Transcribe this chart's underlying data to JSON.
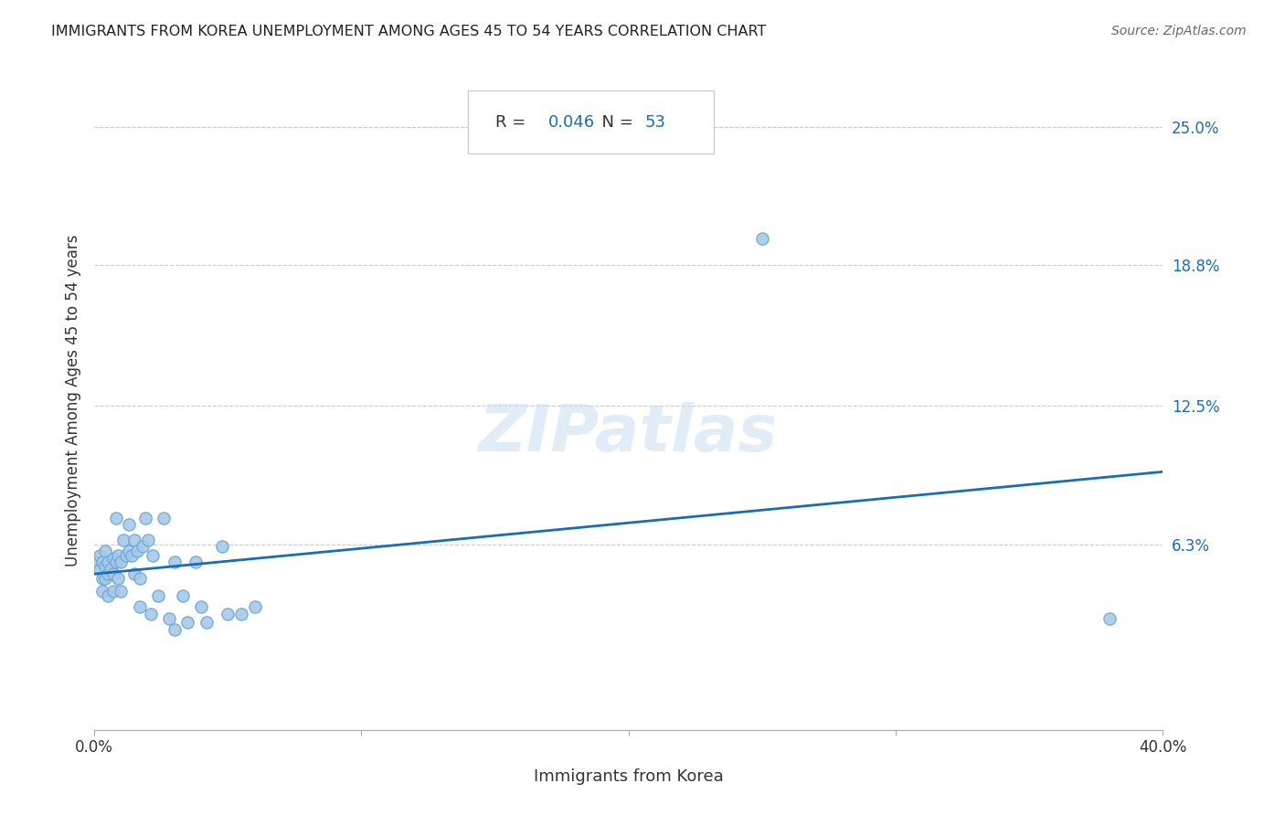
{
  "title": "IMMIGRANTS FROM KOREA UNEMPLOYMENT AMONG AGES 45 TO 54 YEARS CORRELATION CHART",
  "source": "Source: ZipAtlas.com",
  "xlabel": "Immigrants from Korea",
  "ylabel": "Unemployment Among Ages 45 to 54 years",
  "r_value": "0.046",
  "n_value": "53",
  "xlim": [
    0.0,
    0.4
  ],
  "ylim": [
    -0.02,
    0.275
  ],
  "y_tick_labels_right": [
    "25.0%",
    "18.8%",
    "12.5%",
    "6.3%"
  ],
  "y_tick_values_right": [
    0.25,
    0.188,
    0.125,
    0.063
  ],
  "scatter_color": "#a8c8e8",
  "scatter_edge_color": "#6aaad4",
  "line_color": "#1a6db5",
  "title_color": "#222222",
  "source_color": "#666666",
  "annotation_color": "#1a6db5",
  "watermark": "ZIPatlas",
  "points_x": [
    0.001,
    0.002,
    0.002,
    0.003,
    0.003,
    0.003,
    0.004,
    0.004,
    0.004,
    0.005,
    0.005,
    0.005,
    0.006,
    0.007,
    0.007,
    0.007,
    0.008,
    0.008,
    0.009,
    0.009,
    0.01,
    0.01,
    0.011,
    0.012,
    0.013,
    0.013,
    0.014,
    0.015,
    0.015,
    0.016,
    0.017,
    0.017,
    0.018,
    0.019,
    0.02,
    0.021,
    0.022,
    0.024,
    0.026,
    0.028,
    0.03,
    0.03,
    0.033,
    0.035,
    0.038,
    0.04,
    0.042,
    0.048,
    0.05,
    0.055,
    0.06,
    0.25,
    0.38
  ],
  "points_y": [
    0.055,
    0.052,
    0.058,
    0.048,
    0.055,
    0.042,
    0.06,
    0.053,
    0.048,
    0.04,
    0.055,
    0.05,
    0.052,
    0.042,
    0.057,
    0.05,
    0.055,
    0.075,
    0.058,
    0.048,
    0.055,
    0.042,
    0.065,
    0.058,
    0.06,
    0.072,
    0.058,
    0.065,
    0.05,
    0.06,
    0.048,
    0.035,
    0.062,
    0.075,
    0.065,
    0.032,
    0.058,
    0.04,
    0.075,
    0.03,
    0.025,
    0.055,
    0.04,
    0.028,
    0.055,
    0.035,
    0.028,
    0.062,
    0.032,
    0.032,
    0.035,
    0.2,
    0.03
  ]
}
